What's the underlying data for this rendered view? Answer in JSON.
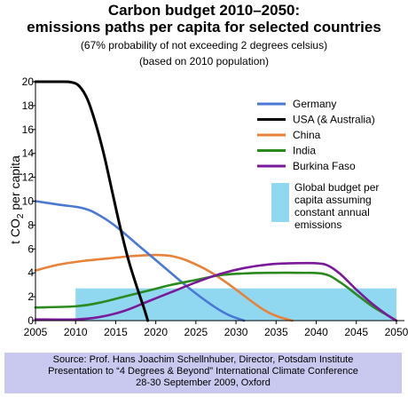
{
  "colors": {
    "germany": "#4a78d6",
    "usa": "#000000",
    "china": "#e8823a",
    "india": "#2a8a1e",
    "burkina": "#7a1a9a",
    "budget": "#8fd8f0"
  },
  "chart_data": {
    "type": "line",
    "title": "Carbon budget 2010–2050:",
    "subtitle": "emissions paths per capita for selected countries",
    "notes": [
      "(67% probability of not exceeding 2 degrees celsius)",
      "(based on 2010 population)"
    ],
    "ylabel": "t CO2 per capita",
    "xlabel": "",
    "xlim": [
      2005,
      2051
    ],
    "ylim": [
      0,
      20
    ],
    "xticks": [
      2005,
      2010,
      2015,
      2020,
      2025,
      2030,
      2035,
      2040,
      2045,
      2050
    ],
    "yticks": [
      0,
      2,
      4,
      6,
      8,
      10,
      12,
      14,
      16,
      18,
      20
    ],
    "legend_position": "right",
    "series": [
      {
        "name": "Germany",
        "color_key": "germany",
        "x": [
          2005,
          2008,
          2011,
          2013,
          2015,
          2018,
          2021,
          2024,
          2027,
          2029,
          2031
        ],
        "y": [
          10,
          9.7,
          9.4,
          8.8,
          7.9,
          6.2,
          4.5,
          2.8,
          1.3,
          0.5,
          0
        ]
      },
      {
        "name": "USA (& Australia)",
        "color_key": "usa",
        "x": [
          2005,
          2008,
          2009.5,
          2010.5,
          2011.5,
          2012.5,
          2013.5,
          2014.5,
          2015.5,
          2016.5,
          2017.5,
          2018.5,
          2019
        ],
        "y": [
          20,
          20,
          19.95,
          19.6,
          18.5,
          16.5,
          14,
          11,
          8,
          5.3,
          3.1,
          1.1,
          0
        ]
      },
      {
        "name": "China",
        "color_key": "china",
        "x": [
          2005,
          2008,
          2011,
          2014,
          2017,
          2020,
          2022,
          2024,
          2027,
          2030,
          2033,
          2035,
          2037
        ],
        "y": [
          4.2,
          4.7,
          5.0,
          5.2,
          5.4,
          5.5,
          5.4,
          5.0,
          4.0,
          2.6,
          1.1,
          0.4,
          0
        ]
      },
      {
        "name": "India",
        "color_key": "india",
        "x": [
          2005,
          2010,
          2013,
          2016,
          2019,
          2022,
          2025,
          2028,
          2031,
          2034,
          2038,
          2041,
          2043,
          2045,
          2047,
          2049,
          2050
        ],
        "y": [
          1.1,
          1.2,
          1.5,
          2.0,
          2.5,
          3.0,
          3.4,
          3.8,
          3.95,
          4.0,
          4.0,
          3.9,
          3.2,
          2.2,
          1.2,
          0.4,
          0
        ]
      },
      {
        "name": "Burkina Faso",
        "color_key": "burkina",
        "x": [
          2005,
          2010,
          2013,
          2016,
          2019,
          2022,
          2025,
          2028,
          2031,
          2034,
          2037,
          2040,
          2041.5,
          2043,
          2045,
          2047,
          2049,
          2050
        ],
        "y": [
          0.1,
          0.1,
          0.3,
          0.8,
          1.6,
          2.4,
          3.2,
          3.9,
          4.4,
          4.7,
          4.8,
          4.8,
          4.6,
          3.9,
          2.6,
          1.4,
          0.4,
          0
        ]
      }
    ],
    "budget_band": {
      "label_lines": [
        "Global budget per",
        "capita assuming",
        "constant annual",
        "emissions"
      ],
      "x": [
        2010,
        2050
      ],
      "y": [
        0,
        2.7
      ]
    }
  },
  "footer": {
    "line1": "Source: Prof. Hans Joachim Schellnhuber, Director, Potsdam Institute",
    "line2": "Presentation to “4 Degrees & Beyond” International Climate Conference",
    "line3": "28-30 September 2009, Oxford"
  }
}
